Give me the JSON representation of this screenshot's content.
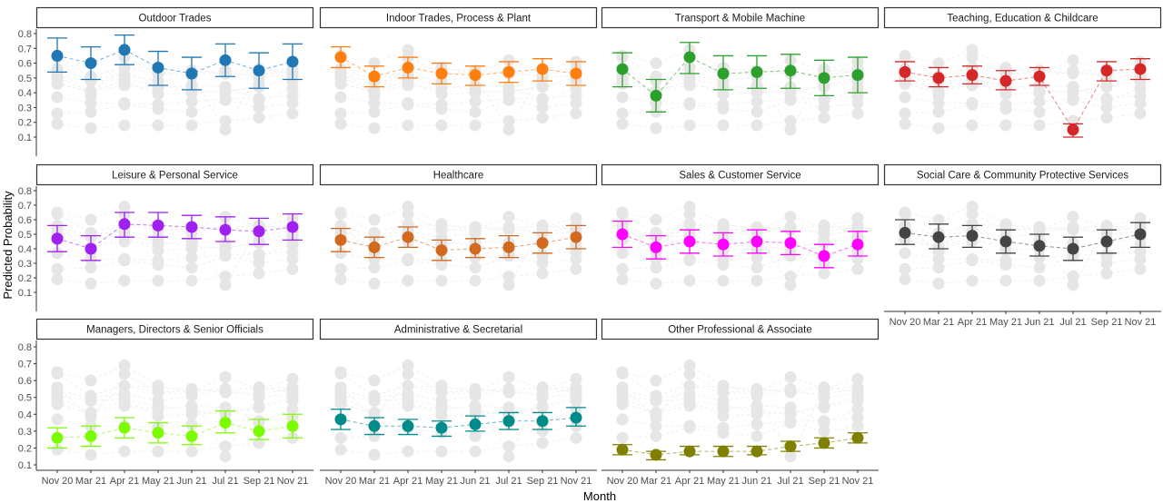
{
  "chart_data": {
    "type": "line",
    "facet_layout": "4 columns",
    "xlabel": "Month",
    "ylabel": "Predicted Probability",
    "x": [
      "Nov 20",
      "Mar 21",
      "Apr 21",
      "May 21",
      "Jun 21",
      "Jul 21",
      "Sep 21",
      "Nov 21"
    ],
    "yticks": [
      "0.1",
      "0.2",
      "0.3",
      "0.4",
      "0.5",
      "0.6",
      "0.7",
      "0.8"
    ],
    "ylim": [
      0.1,
      0.8
    ],
    "background_series_color": "#e6e6e6",
    "error_bars": true,
    "series": [
      {
        "name": "Outdoor Trades",
        "color": "#1f77b4",
        "values": [
          0.65,
          0.6,
          0.69,
          0.57,
          0.53,
          0.62,
          0.55,
          0.61
        ],
        "ci_low": [
          0.54,
          0.49,
          0.59,
          0.45,
          0.42,
          0.51,
          0.43,
          0.49
        ],
        "ci_high": [
          0.77,
          0.71,
          0.79,
          0.68,
          0.64,
          0.73,
          0.67,
          0.73
        ]
      },
      {
        "name": "Indoor Trades, Process & Plant",
        "color": "#ff7f0e",
        "values": [
          0.64,
          0.51,
          0.57,
          0.53,
          0.52,
          0.54,
          0.56,
          0.53
        ],
        "ci_low": [
          0.57,
          0.44,
          0.5,
          0.46,
          0.45,
          0.47,
          0.48,
          0.45
        ],
        "ci_high": [
          0.71,
          0.58,
          0.64,
          0.6,
          0.58,
          0.61,
          0.63,
          0.61
        ]
      },
      {
        "name": "Transport & Mobile Machine",
        "color": "#2ca02c",
        "values": [
          0.56,
          0.38,
          0.64,
          0.53,
          0.54,
          0.55,
          0.5,
          0.52
        ],
        "ci_low": [
          0.44,
          0.27,
          0.53,
          0.42,
          0.43,
          0.43,
          0.38,
          0.4
        ],
        "ci_high": [
          0.67,
          0.49,
          0.74,
          0.65,
          0.65,
          0.66,
          0.62,
          0.64
        ]
      },
      {
        "name": "Teaching, Education & Childcare",
        "color": "#d62728",
        "values": [
          0.54,
          0.5,
          0.52,
          0.48,
          0.51,
          0.15,
          0.55,
          0.56
        ],
        "ci_low": [
          0.48,
          0.44,
          0.46,
          0.42,
          0.45,
          0.1,
          0.48,
          0.49
        ],
        "ci_high": [
          0.61,
          0.57,
          0.58,
          0.55,
          0.57,
          0.19,
          0.61,
          0.63
        ]
      },
      {
        "name": "Leisure & Personal Service",
        "color": "#a020f0",
        "values": [
          0.47,
          0.4,
          0.57,
          0.56,
          0.55,
          0.53,
          0.52,
          0.55
        ],
        "ci_low": [
          0.38,
          0.32,
          0.48,
          0.48,
          0.47,
          0.45,
          0.43,
          0.46
        ],
        "ci_high": [
          0.56,
          0.49,
          0.65,
          0.65,
          0.63,
          0.62,
          0.61,
          0.64
        ]
      },
      {
        "name": "Healthcare",
        "color": "#d2691e",
        "values": [
          0.46,
          0.41,
          0.48,
          0.39,
          0.4,
          0.41,
          0.44,
          0.48
        ],
        "ci_low": [
          0.38,
          0.34,
          0.41,
          0.32,
          0.34,
          0.34,
          0.37,
          0.4
        ],
        "ci_high": [
          0.54,
          0.48,
          0.55,
          0.46,
          0.47,
          0.49,
          0.51,
          0.56
        ]
      },
      {
        "name": "Sales & Customer Service",
        "color": "#ff00ff",
        "values": [
          0.5,
          0.41,
          0.45,
          0.43,
          0.45,
          0.44,
          0.35,
          0.43
        ],
        "ci_low": [
          0.41,
          0.33,
          0.37,
          0.35,
          0.37,
          0.36,
          0.27,
          0.35
        ],
        "ci_high": [
          0.59,
          0.49,
          0.53,
          0.51,
          0.53,
          0.52,
          0.43,
          0.52
        ]
      },
      {
        "name": "Social Care & Community Protective Services",
        "color": "#444444",
        "values": [
          0.51,
          0.48,
          0.49,
          0.45,
          0.42,
          0.4,
          0.45,
          0.5
        ],
        "ci_low": [
          0.43,
          0.4,
          0.41,
          0.37,
          0.35,
          0.32,
          0.37,
          0.41
        ],
        "ci_high": [
          0.6,
          0.57,
          0.56,
          0.53,
          0.5,
          0.48,
          0.53,
          0.58
        ]
      },
      {
        "name": "Managers, Directors & Senior Officials",
        "color": "#7cfc00",
        "values": [
          0.26,
          0.27,
          0.32,
          0.29,
          0.27,
          0.35,
          0.3,
          0.33
        ],
        "ci_low": [
          0.2,
          0.21,
          0.26,
          0.23,
          0.22,
          0.29,
          0.25,
          0.26
        ],
        "ci_high": [
          0.32,
          0.33,
          0.38,
          0.35,
          0.33,
          0.42,
          0.37,
          0.4
        ]
      },
      {
        "name": "Administrative & Secretarial",
        "color": "#008b8b",
        "values": [
          0.37,
          0.33,
          0.33,
          0.32,
          0.34,
          0.36,
          0.36,
          0.38
        ],
        "ci_low": [
          0.31,
          0.28,
          0.28,
          0.27,
          0.3,
          0.31,
          0.31,
          0.33
        ],
        "ci_high": [
          0.43,
          0.38,
          0.37,
          0.36,
          0.39,
          0.41,
          0.41,
          0.44
        ]
      },
      {
        "name": "Other Professional & Associate",
        "color": "#808000",
        "values": [
          0.19,
          0.16,
          0.18,
          0.18,
          0.18,
          0.21,
          0.23,
          0.26
        ],
        "ci_low": [
          0.16,
          0.13,
          0.16,
          0.15,
          0.16,
          0.18,
          0.2,
          0.23
        ],
        "ci_high": [
          0.22,
          0.18,
          0.21,
          0.21,
          0.21,
          0.24,
          0.26,
          0.29
        ]
      }
    ]
  }
}
